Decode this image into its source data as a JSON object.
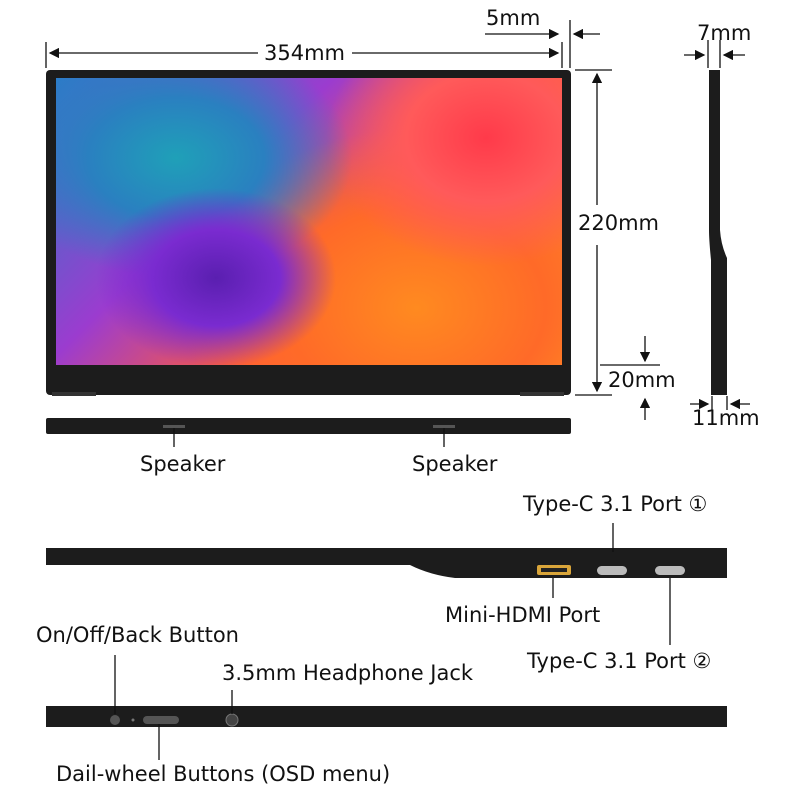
{
  "dimensions": {
    "width": "354mm",
    "bezel_side": "5mm",
    "height": "220mm",
    "bottom_bezel": "20mm",
    "thickness_top": "7mm",
    "thickness_bottom": "11mm"
  },
  "bottom_view": {
    "speaker_left": "Speaker",
    "speaker_right": "Speaker"
  },
  "ports_side": {
    "typec1": "Type-C 3.1 Port ①",
    "mini_hdmi": "Mini-HDMI Port",
    "typec2": "Type-C 3.1 Port ②"
  },
  "controls_side": {
    "power": "On/Off/Back Button",
    "headphone": "3.5mm Headphone Jack",
    "dial": "Dail-wheel Buttons (OSD menu)"
  },
  "colors": {
    "body": "#1c1c1c",
    "line": "#111111",
    "hdmi": "#d9a53a"
  }
}
